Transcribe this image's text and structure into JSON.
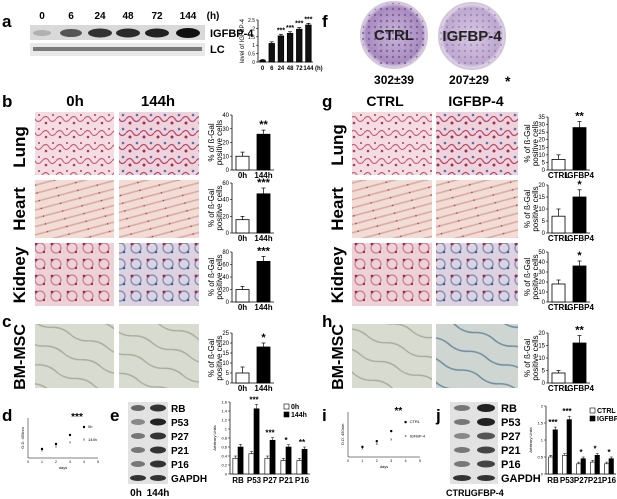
{
  "panel_letters": [
    "a",
    "b",
    "c",
    "d",
    "e",
    "f",
    "g",
    "h",
    "i",
    "j"
  ],
  "panel_a": {
    "timepoints": [
      "0",
      "6",
      "24",
      "48",
      "72",
      "144"
    ],
    "unit": "(h)",
    "bands": [
      "IGFBP-4",
      "LC"
    ]
  },
  "panel_f": {
    "plates": [
      {
        "label": "CTRL",
        "count": "302±39",
        "star": ""
      },
      {
        "label": "IGFBP-4",
        "count": "207±29",
        "star": "*"
      }
    ]
  },
  "panel_b": {
    "columns": [
      "0h",
      "144h"
    ],
    "tissues": [
      "Lung",
      "Heart",
      "Kidney"
    ]
  },
  "panel_g": {
    "columns": [
      "CTRL",
      "IGFBP-4"
    ],
    "tissues": [
      "Lung",
      "Heart",
      "Kidney"
    ]
  },
  "panel_c": {
    "tissue": "BM-MSC"
  },
  "panel_h": {
    "tissue": "BM-MSC"
  },
  "panel_e": {
    "bands": [
      "RB",
      "P53",
      "P27",
      "P21",
      "P16",
      "GAPDH"
    ],
    "lanes": [
      "0h",
      "144h"
    ]
  },
  "panel_j": {
    "bands": [
      "RB",
      "P53",
      "P27",
      "P21",
      "P16",
      "GAPDH"
    ],
    "lanes": [
      "CTRL",
      "IGFBP-4"
    ]
  },
  "chart_data": [
    {
      "id": "a-bar",
      "type": "bar",
      "categories": [
        "0",
        "6",
        "24",
        "48",
        "72",
        "144"
      ],
      "values": [
        0.1,
        1.1,
        1.55,
        1.7,
        1.95,
        2.2
      ],
      "errors": [
        0.05,
        0.1,
        0.1,
        0.1,
        0.1,
        0.1
      ],
      "stars": [
        "",
        "",
        "***",
        "***",
        "***",
        "***"
      ],
      "ylabel": "level of IGFBP-4",
      "xlabel": "(h)",
      "yticks": [
        0,
        0.5,
        1,
        1.5,
        2,
        2.5
      ],
      "ylim": [
        0,
        2.5
      ]
    },
    {
      "id": "b-lung",
      "type": "bar",
      "categories": [
        "0h",
        "144h"
      ],
      "values": [
        10,
        26
      ],
      "errors": [
        3,
        3
      ],
      "stars": [
        "",
        "**"
      ],
      "ylabel": "% of ß-Gal positive cells",
      "yticks": [
        0,
        10,
        20,
        30,
        40
      ],
      "ylim": [
        0,
        40
      ]
    },
    {
      "id": "b-heart",
      "type": "bar",
      "categories": [
        "0h",
        "144h"
      ],
      "values": [
        16,
        47
      ],
      "errors": [
        4,
        7
      ],
      "stars": [
        "",
        "***"
      ],
      "ylabel": "% of ß-Gal positive cells",
      "yticks": [
        0,
        20,
        40,
        60
      ],
      "ylim": [
        0,
        60
      ]
    },
    {
      "id": "b-kidney",
      "type": "bar",
      "categories": [
        "0h",
        "144h"
      ],
      "values": [
        20,
        65
      ],
      "errors": [
        5,
        8
      ],
      "stars": [
        "",
        "***"
      ],
      "ylabel": "% of ß-Gal positive cells",
      "yticks": [
        0,
        20,
        40,
        60,
        80
      ],
      "ylim": [
        0,
        80
      ]
    },
    {
      "id": "c-bmmsc",
      "type": "bar",
      "categories": [
        "0h",
        "144h"
      ],
      "values": [
        5,
        18
      ],
      "errors": [
        3,
        2
      ],
      "stars": [
        "",
        "*"
      ],
      "ylabel": "% of ß-Gal positive cells",
      "yticks": [
        0,
        5,
        10,
        15,
        20,
        25
      ],
      "ylim": [
        0,
        25
      ]
    },
    {
      "id": "g-lung",
      "type": "bar",
      "categories": [
        "CTRL",
        "IGFBP4"
      ],
      "values": [
        7,
        28
      ],
      "errors": [
        3,
        4
      ],
      "stars": [
        "",
        "**"
      ],
      "ylabel": "% of ß-Gal positive cells",
      "yticks": [
        0,
        5,
        10,
        15,
        20,
        25,
        30,
        35
      ],
      "ylim": [
        0,
        35
      ]
    },
    {
      "id": "g-heart",
      "type": "bar",
      "categories": [
        "CTRL",
        "IGFBP4"
      ],
      "values": [
        7,
        15
      ],
      "errors": [
        3,
        3
      ],
      "stars": [
        "",
        "*"
      ],
      "ylabel": "% of ß-Gal positive cells",
      "yticks": [
        0,
        5,
        10,
        15,
        20
      ],
      "ylim": [
        0,
        20
      ]
    },
    {
      "id": "g-kidney",
      "type": "bar",
      "categories": [
        "CTRL",
        "IGFBP4"
      ],
      "values": [
        18,
        36
      ],
      "errors": [
        4,
        5
      ],
      "stars": [
        "",
        "*"
      ],
      "ylabel": "% of ß-Gal positive cells",
      "yticks": [
        0,
        10,
        20,
        30,
        40,
        50
      ],
      "ylim": [
        0,
        50
      ]
    },
    {
      "id": "h-bmmsc",
      "type": "bar",
      "categories": [
        "CTRL",
        "IGFBP4"
      ],
      "values": [
        4,
        16
      ],
      "errors": [
        1,
        3
      ],
      "stars": [
        "",
        "**"
      ],
      "ylabel": "% of ß-Gal positive cells",
      "yticks": [
        0,
        5,
        10,
        15,
        20
      ],
      "ylim": [
        0,
        20
      ]
    },
    {
      "id": "d-scatter",
      "type": "scatter",
      "series": [
        {
          "name": "0h",
          "x": [
            1,
            2,
            3,
            4
          ],
          "y": [
            0.45,
            0.7,
            1.15,
            1.55
          ]
        },
        {
          "name": "144h",
          "x": [
            1,
            2,
            3,
            4
          ],
          "y": [
            0.4,
            0.6,
            0.8,
            0.95
          ]
        }
      ],
      "stars": "***",
      "xlabel": "days",
      "ylabel": "O.D. 450nm",
      "xticks": [
        0,
        1,
        2,
        3,
        4,
        5
      ],
      "ylim": [
        0,
        2
      ],
      "xlim": [
        0,
        5
      ]
    },
    {
      "id": "i-scatter",
      "type": "scatter",
      "series": [
        {
          "name": "CTRL",
          "x": [
            1,
            2,
            3,
            4
          ],
          "y": [
            0.45,
            0.7,
            1.15,
            1.55
          ]
        },
        {
          "name": "IGFBP-4",
          "x": [
            1,
            2,
            3,
            4
          ],
          "y": [
            0.4,
            0.6,
            0.8,
            0.95
          ]
        }
      ],
      "stars": "**",
      "xlabel": "days",
      "ylabel": "O.D. 450nm",
      "xticks": [
        0,
        1,
        2,
        3,
        4,
        5
      ],
      "ylim": [
        0,
        2
      ],
      "xlim": [
        0,
        5
      ]
    },
    {
      "id": "e-grouped",
      "type": "bar",
      "categories": [
        "RB",
        "P53",
        "P27",
        "P21",
        "P16"
      ],
      "series": [
        {
          "name": "0h",
          "values": [
            0.35,
            0.45,
            0.35,
            0.3,
            0.3
          ],
          "errors": [
            0.05,
            0.05,
            0.05,
            0.05,
            0.05
          ]
        },
        {
          "name": "144h",
          "values": [
            0.6,
            1.45,
            0.75,
            0.6,
            0.55
          ],
          "errors": [
            0.06,
            0.1,
            0.06,
            0.05,
            0.05
          ]
        }
      ],
      "stars": [
        "",
        "***",
        "***",
        "*",
        "**"
      ],
      "ylabel": "Arbitrary Units",
      "yticks": [
        0,
        0.2,
        0.4,
        0.6,
        0.8,
        1,
        1.2,
        1.4,
        1.6
      ],
      "ylim": [
        0,
        1.6
      ],
      "legend": "top-right"
    },
    {
      "id": "j-grouped",
      "type": "bar",
      "categories": [
        "RB",
        "P53",
        "P27",
        "P21",
        "P16"
      ],
      "series": [
        {
          "name": "CTRL",
          "values": [
            0.5,
            0.55,
            0.3,
            0.35,
            0.3
          ],
          "errors": [
            0.05,
            0.05,
            0.05,
            0.05,
            0.05
          ]
        },
        {
          "name": "IGFBP-4",
          "values": [
            1.3,
            1.6,
            0.45,
            0.55,
            0.45
          ],
          "errors": [
            0.08,
            0.1,
            0.05,
            0.05,
            0.05
          ]
        }
      ],
      "stars": [
        "***",
        "***",
        "*",
        "*",
        "*"
      ],
      "ylabel": "Arbitrary Units",
      "yticks": [
        0,
        0.5,
        1,
        1.5,
        2
      ],
      "ylim": [
        0,
        2
      ],
      "legend": "top-right"
    }
  ]
}
